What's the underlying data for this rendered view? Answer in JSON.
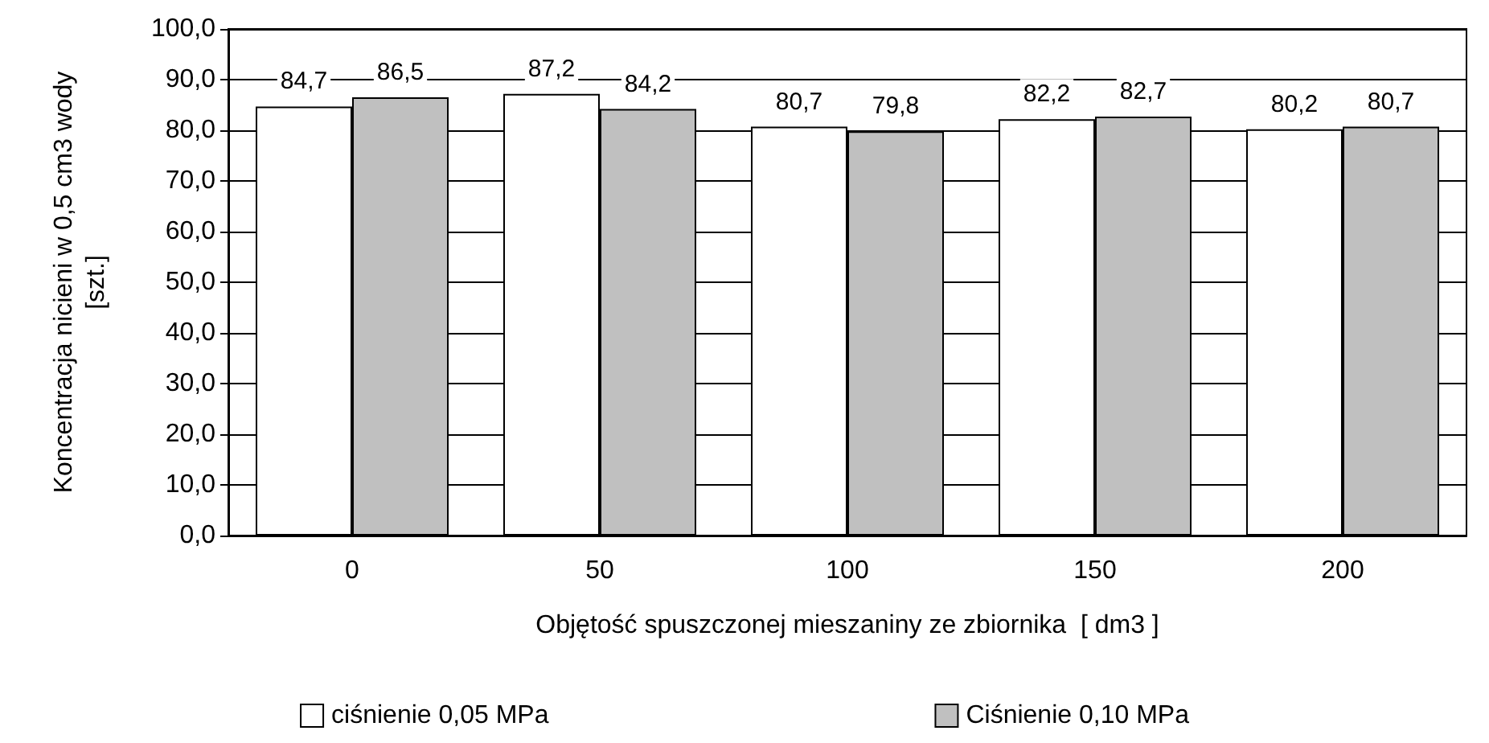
{
  "chart_data": {
    "type": "bar",
    "xlabel": "Objętość spuszczonej mieszaniny ze zbiornika  [ dm3 ]",
    "ylabel": "Koncentracja nicieni w 0,5 cm3 wody\n[szt.]",
    "categories": [
      "0",
      "50",
      "100",
      "150",
      "200"
    ],
    "series": [
      {
        "name": "ciśnienie 0,05 MPa",
        "color": "#ffffff",
        "values": [
          84.7,
          87.2,
          80.7,
          82.2,
          80.2
        ],
        "value_labels": [
          "84,7",
          "87,2",
          "80,7",
          "82,2",
          "80,2"
        ]
      },
      {
        "name": "Ciśnienie 0,10 MPa",
        "color": "#c0c0c0",
        "values": [
          86.5,
          84.2,
          79.8,
          82.7,
          80.7
        ],
        "value_labels": [
          "86,5",
          "84,2",
          "79,8",
          "82,7",
          "80,7"
        ]
      }
    ],
    "ylim": [
      0,
      100
    ],
    "yticks": [
      {
        "value": 0,
        "label": "0,0"
      },
      {
        "value": 10,
        "label": "10,0"
      },
      {
        "value": 20,
        "label": "20,0"
      },
      {
        "value": 30,
        "label": "30,0"
      },
      {
        "value": 40,
        "label": "40,0"
      },
      {
        "value": 50,
        "label": "50,0"
      },
      {
        "value": 60,
        "label": "60,0"
      },
      {
        "value": 70,
        "label": "70,0"
      },
      {
        "value": 80,
        "label": "80,0"
      },
      {
        "value": 90,
        "label": "90,0"
      },
      {
        "value": 100,
        "label": "100,0"
      }
    ],
    "grid": "y",
    "legend": "bottom"
  }
}
